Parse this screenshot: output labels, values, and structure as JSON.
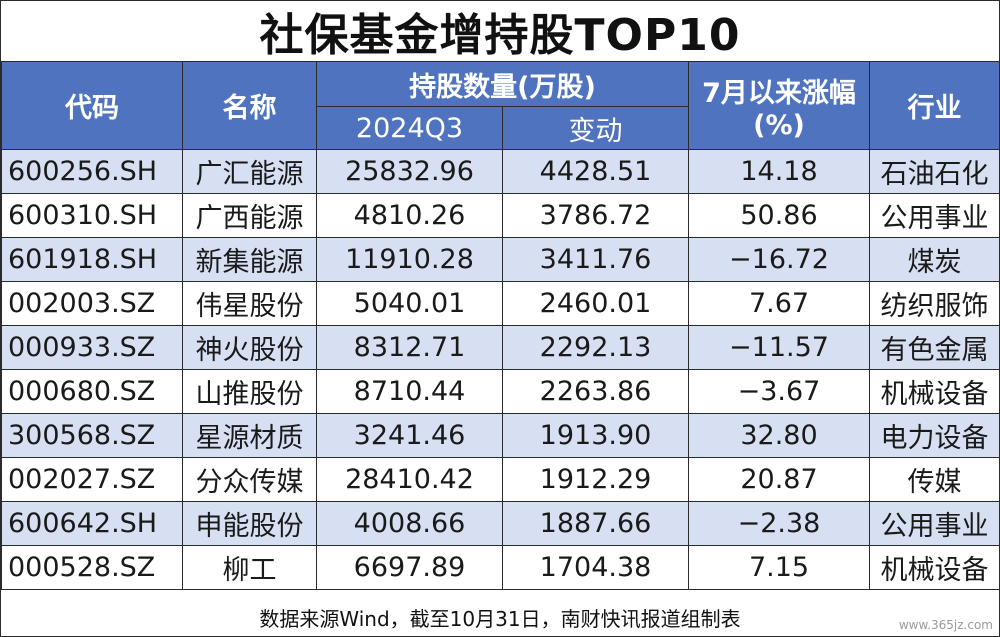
{
  "title": "社保基金增持股TOP10",
  "headers": {
    "code": "代码",
    "name": "名称",
    "holdings": "持股数量(万股)",
    "period": "2024Q3",
    "change": "变动",
    "rise_line1": "7月以来涨幅",
    "rise_line2": "(%)",
    "industry": "行业"
  },
  "rows": [
    {
      "code": "600256.SH",
      "name": "广汇能源",
      "holding": "25832.96",
      "change": "4428.51",
      "rise": "14.18",
      "industry": "石油石化"
    },
    {
      "code": "600310.SH",
      "name": "广西能源",
      "holding": "4810.26",
      "change": "3786.72",
      "rise": "50.86",
      "industry": "公用事业"
    },
    {
      "code": "601918.SH",
      "name": "新集能源",
      "holding": "11910.28",
      "change": "3411.76",
      "rise": "−16.72",
      "industry": "煤炭"
    },
    {
      "code": "002003.SZ",
      "name": "伟星股份",
      "holding": "5040.01",
      "change": "2460.01",
      "rise": "7.67",
      "industry": "纺织服饰"
    },
    {
      "code": "000933.SZ",
      "name": "神火股份",
      "holding": "8312.71",
      "change": "2292.13",
      "rise": "−11.57",
      "industry": "有色金属"
    },
    {
      "code": "000680.SZ",
      "name": "山推股份",
      "holding": "8710.44",
      "change": "2263.86",
      "rise": "−3.67",
      "industry": "机械设备"
    },
    {
      "code": "300568.SZ",
      "name": "星源材质",
      "holding": "3241.46",
      "change": "1913.90",
      "rise": "32.80",
      "industry": "电力设备"
    },
    {
      "code": "002027.SZ",
      "name": "分众传媒",
      "holding": "28410.42",
      "change": "1912.29",
      "rise": "20.87",
      "industry": "传媒"
    },
    {
      "code": "600642.SH",
      "name": "申能股份",
      "holding": "4008.66",
      "change": "1887.66",
      "rise": "−2.38",
      "industry": "公用事业"
    },
    {
      "code": "000528.SZ",
      "name": "柳工",
      "holding": "6697.89",
      "change": "1704.38",
      "rise": "7.15",
      "industry": "机械设备"
    }
  ],
  "footer": "数据来源Wind，截至10月31日，南财快讯报道组制表",
  "watermark": "www.365jz.com",
  "colors": {
    "header_bg": "#4f73be",
    "stripe_bg": "#d7e0f2"
  }
}
